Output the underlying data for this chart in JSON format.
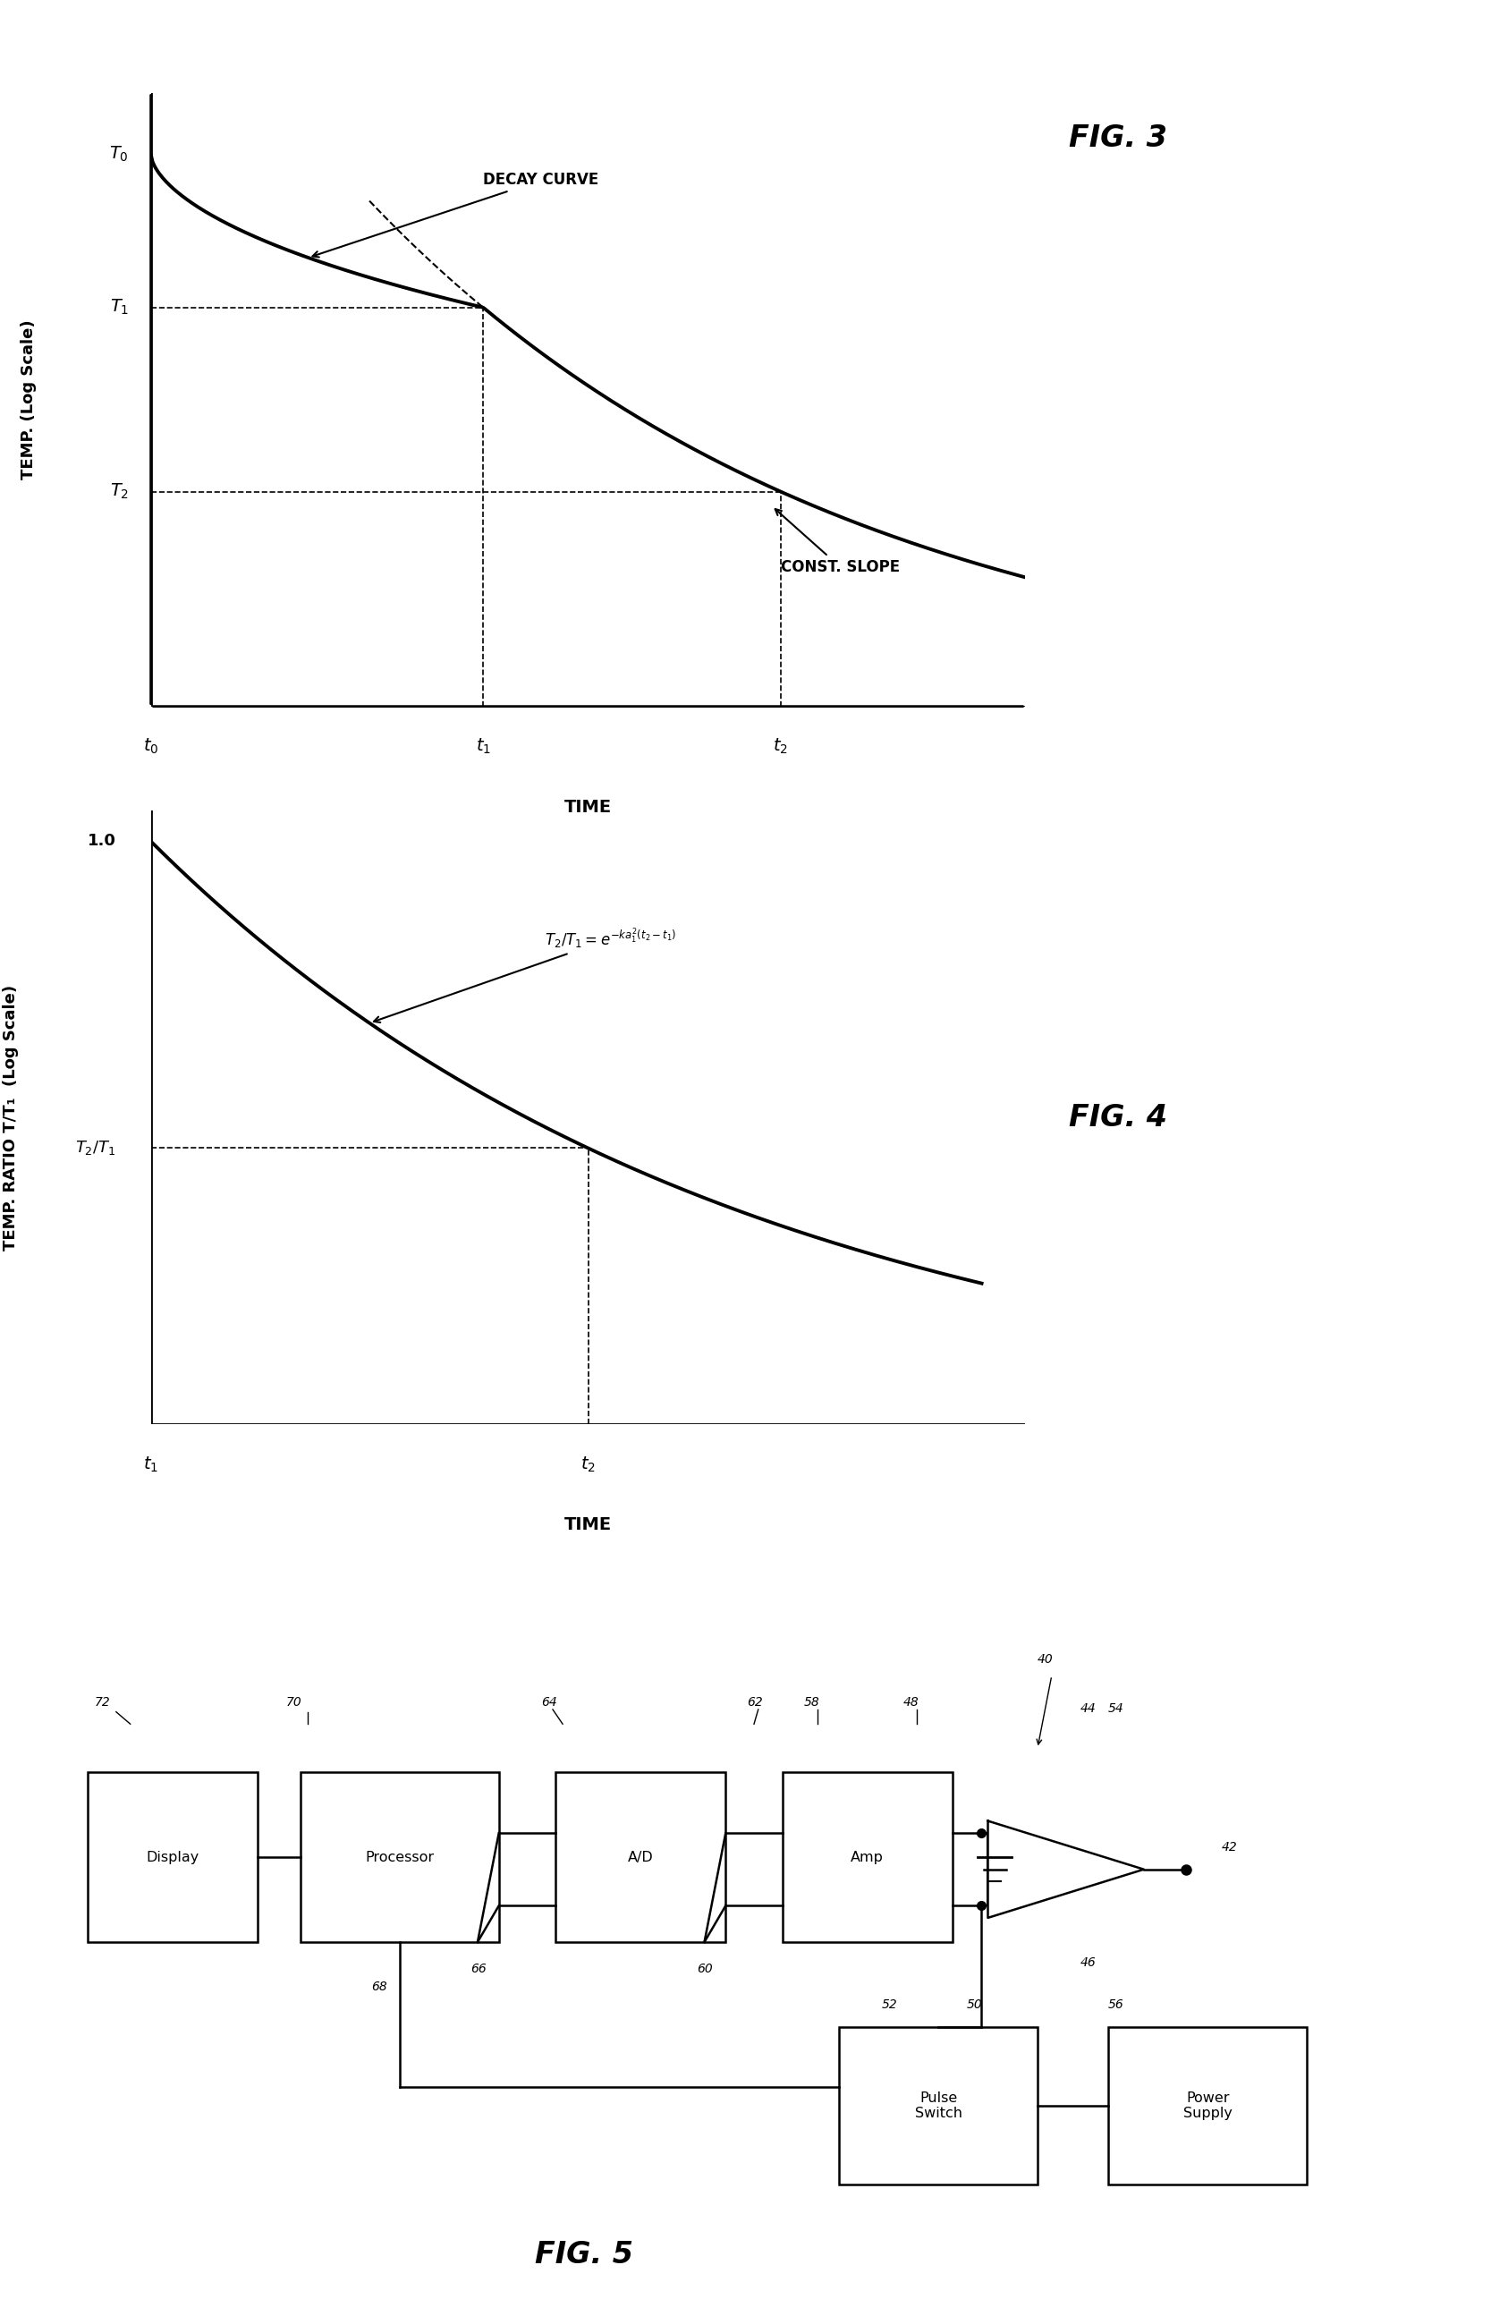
{
  "fig3": {
    "title": "FIG. 3",
    "xlabel": "TIME",
    "ylabel": "TEMP. (Log Scale)",
    "decay_curve_label": "DECAY CURVE",
    "const_slope_label": "CONST. SLOPE"
  },
  "fig4": {
    "title": "FIG. 4",
    "xlabel": "TIME",
    "ylabel": "TEMP. RATIO T/T₁  (Log Scale)"
  },
  "fig5": {
    "title": "FIG. 5"
  },
  "background_color": "#ffffff",
  "line_color": "#000000"
}
